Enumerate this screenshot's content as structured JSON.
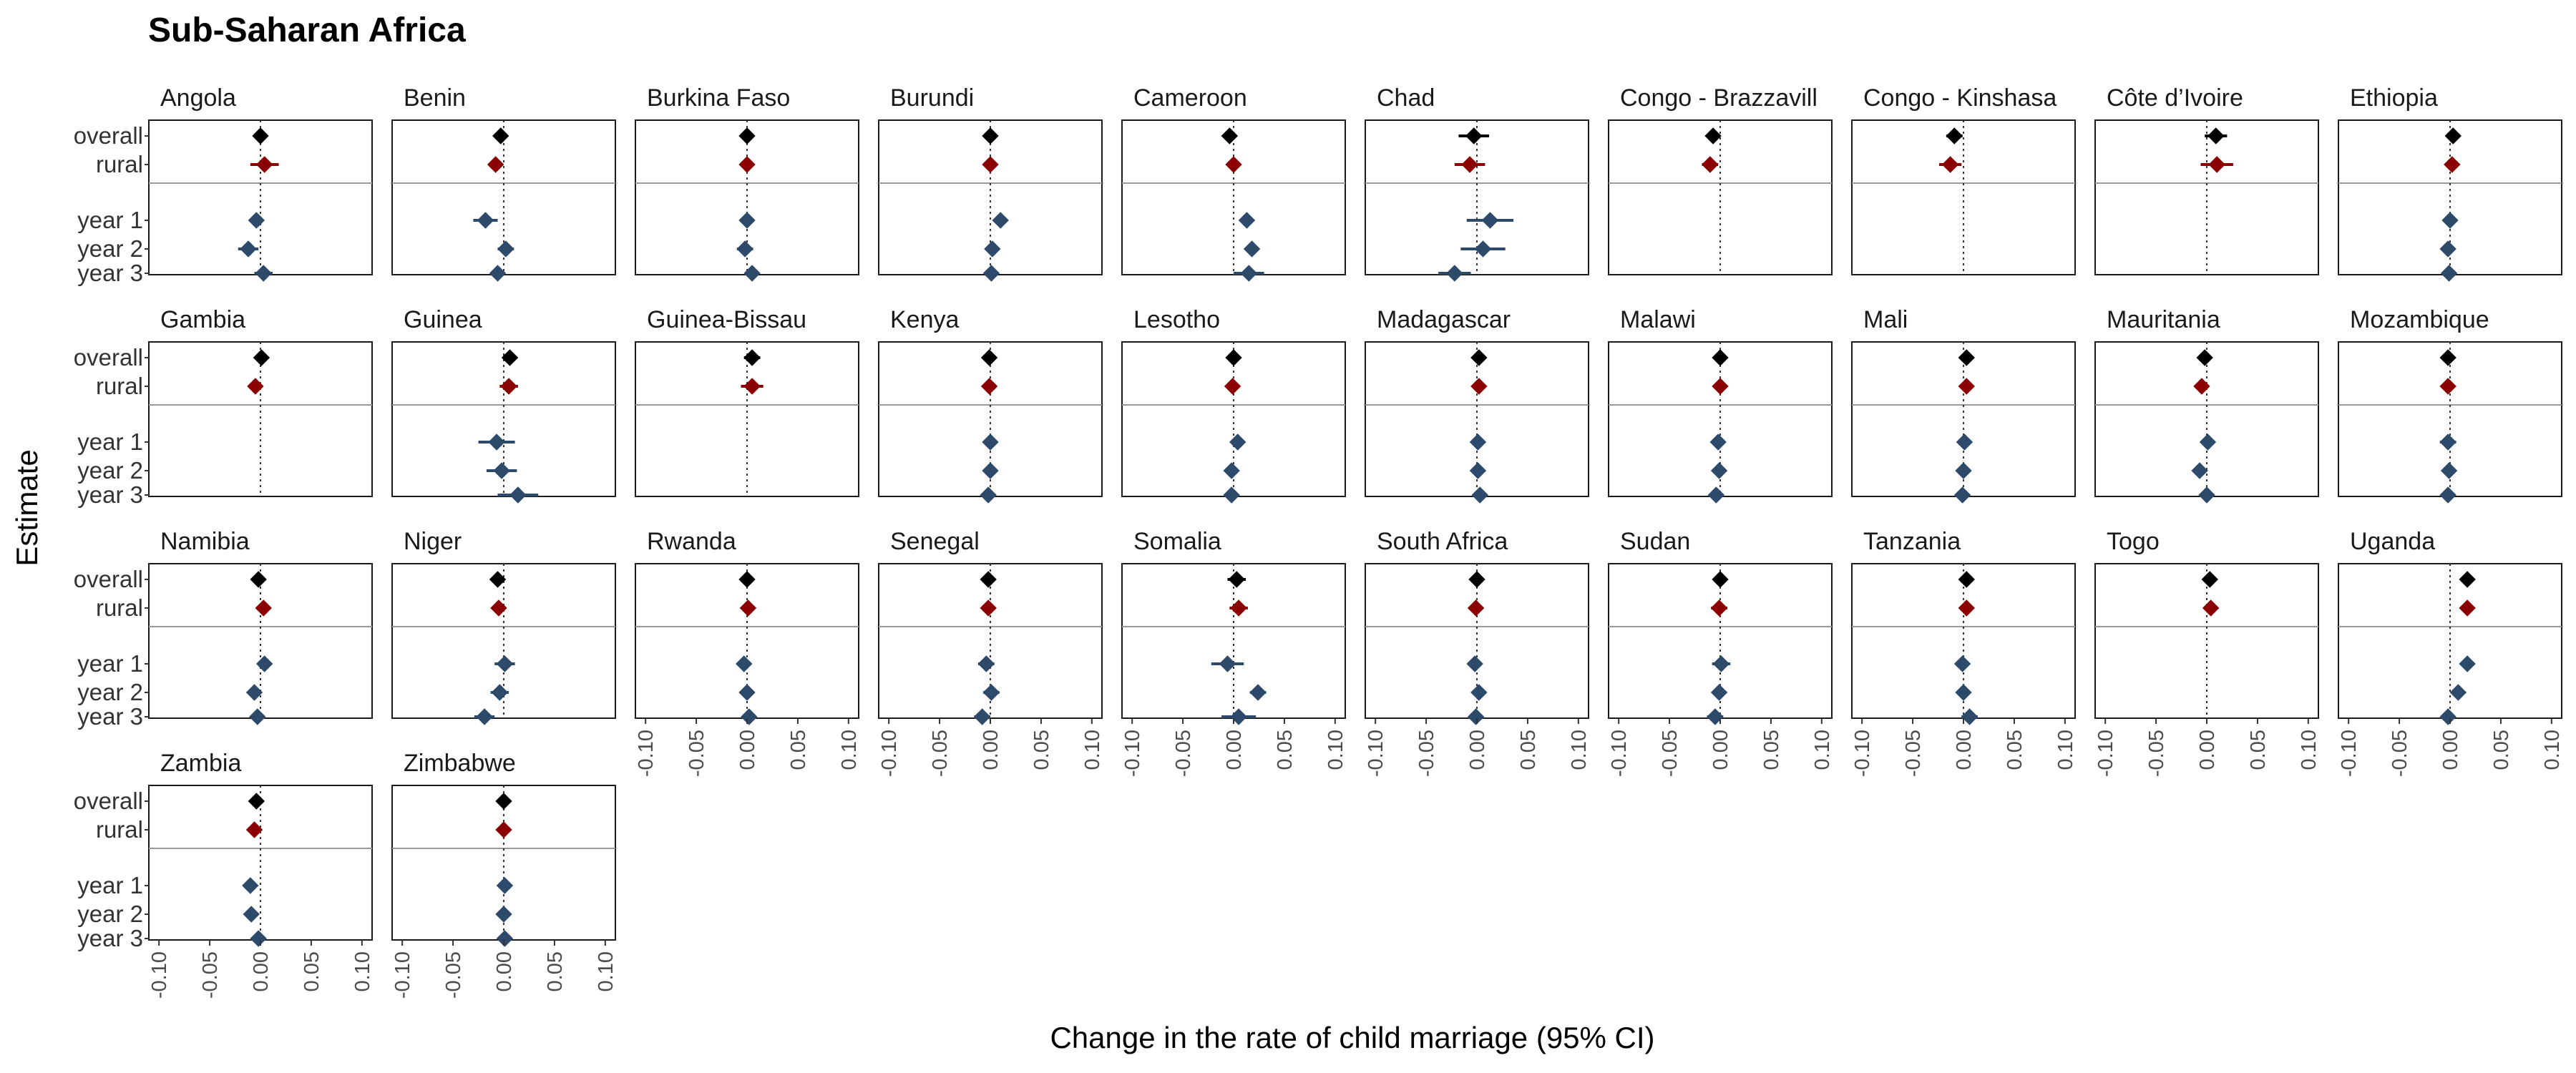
{
  "chart_data": {
    "type": "forest",
    "title": "Sub-Saharan Africa",
    "xlabel": "Change in the rate of child marriage (95% CI)",
    "ylabel": "Estimate",
    "xlim": [
      -0.11,
      0.11
    ],
    "xticks": [
      -0.1,
      -0.05,
      0.0,
      0.05,
      0.1
    ],
    "xtick_labels": [
      "-0.10",
      "-0.05",
      "0.00",
      "0.05",
      "0.10"
    ],
    "estimates": [
      "overall",
      "rural",
      "year 1",
      "year 2",
      "year 3"
    ],
    "colors": {
      "overall": "#000000",
      "rural": "#8b0000",
      "year": "#2e4a6b"
    },
    "vline": 0,
    "panels": [
      {
        "name": "Angola",
        "values": [
          [
            0.0,
            -0.004,
            0.004
          ],
          [
            0.004,
            -0.01,
            0.018
          ],
          [
            -0.004,
            -0.01,
            0.002
          ],
          [
            -0.012,
            -0.022,
            -0.002
          ],
          [
            0.003,
            -0.006,
            0.012
          ]
        ]
      },
      {
        "name": "Benin",
        "values": [
          [
            -0.003,
            -0.007,
            0.001
          ],
          [
            -0.008,
            -0.013,
            -0.003
          ],
          [
            -0.018,
            -0.03,
            -0.006
          ],
          [
            0.002,
            -0.006,
            0.01
          ],
          [
            -0.006,
            -0.013,
            0.001
          ]
        ]
      },
      {
        "name": "Burkina Faso",
        "values": [
          [
            0.0,
            -0.004,
            0.004
          ],
          [
            0.0,
            -0.005,
            0.005
          ],
          [
            0.0,
            -0.006,
            0.006
          ],
          [
            -0.002,
            -0.01,
            0.006
          ],
          [
            0.005,
            -0.002,
            0.012
          ]
        ]
      },
      {
        "name": "Burundi",
        "values": [
          [
            0.0,
            -0.004,
            0.004
          ],
          [
            0.0,
            -0.004,
            0.004
          ],
          [
            0.01,
            0.004,
            0.016
          ],
          [
            0.002,
            -0.005,
            0.009
          ],
          [
            0.001,
            -0.006,
            0.008
          ]
        ]
      },
      {
        "name": "Cameroon",
        "values": [
          [
            -0.004,
            -0.008,
            0.0
          ],
          [
            0.0,
            -0.004,
            0.004
          ],
          [
            0.013,
            0.006,
            0.02
          ],
          [
            0.018,
            0.011,
            0.025
          ],
          [
            0.015,
            0.0,
            0.03
          ]
        ]
      },
      {
        "name": "Chad",
        "values": [
          [
            -0.003,
            -0.018,
            0.012
          ],
          [
            -0.007,
            -0.022,
            0.008
          ],
          [
            0.013,
            -0.01,
            0.036
          ],
          [
            0.006,
            -0.016,
            0.028
          ],
          [
            -0.022,
            -0.038,
            -0.006
          ]
        ]
      },
      {
        "name": "Congo - Brazzavill",
        "values": [
          [
            -0.007,
            -0.012,
            -0.002
          ],
          [
            -0.01,
            -0.018,
            -0.002
          ],
          null,
          null,
          null
        ],
        "axis_domain": [
          -0.11,
          0.11
        ]
      },
      {
        "name": "Congo - Kinshasa",
        "values": [
          [
            -0.009,
            -0.017,
            -0.001
          ],
          [
            -0.013,
            -0.024,
            -0.002
          ],
          null,
          null,
          null
        ]
      },
      {
        "name": "Côte d’Ivoire",
        "values": [
          [
            0.009,
            -0.002,
            0.02
          ],
          [
            0.01,
            -0.006,
            0.026
          ],
          null,
          null,
          null
        ]
      },
      {
        "name": "Ethiopia",
        "values": [
          [
            0.003,
            -0.002,
            0.008
          ],
          [
            0.002,
            -0.002,
            0.006
          ],
          [
            0.0,
            -0.004,
            0.004
          ],
          [
            -0.002,
            -0.008,
            0.004
          ],
          [
            -0.001,
            -0.005,
            0.003
          ]
        ]
      },
      {
        "name": "Gambia",
        "values": [
          [
            0.001,
            -0.003,
            0.005
          ],
          [
            -0.005,
            -0.009,
            -0.001
          ],
          null,
          null,
          null
        ]
      },
      {
        "name": "Guinea",
        "values": [
          [
            0.006,
            -0.001,
            0.013
          ],
          [
            0.005,
            -0.004,
            0.014
          ],
          [
            -0.007,
            -0.025,
            0.011
          ],
          [
            -0.002,
            -0.017,
            0.013
          ],
          [
            0.014,
            -0.006,
            0.034
          ]
        ]
      },
      {
        "name": "Guinea-Bissau",
        "values": [
          [
            0.005,
            -0.003,
            0.013
          ],
          [
            0.005,
            -0.006,
            0.016
          ],
          null,
          null,
          null
        ]
      },
      {
        "name": "Kenya",
        "values": [
          [
            -0.001,
            -0.005,
            0.003
          ],
          [
            -0.001,
            -0.005,
            0.003
          ],
          [
            0.0,
            -0.004,
            0.004
          ],
          [
            0.0,
            -0.004,
            0.004
          ],
          [
            -0.002,
            -0.006,
            0.002
          ]
        ]
      },
      {
        "name": "Lesotho",
        "values": [
          [
            0.0,
            -0.004,
            0.004
          ],
          [
            -0.001,
            -0.006,
            0.004
          ],
          [
            0.004,
            -0.001,
            0.009
          ],
          [
            -0.002,
            -0.007,
            0.003
          ],
          [
            -0.002,
            -0.007,
            0.003
          ]
        ]
      },
      {
        "name": "Madagascar",
        "values": [
          [
            0.002,
            -0.002,
            0.006
          ],
          [
            0.002,
            -0.002,
            0.006
          ],
          [
            0.001,
            -0.003,
            0.005
          ],
          [
            0.001,
            -0.003,
            0.005
          ],
          [
            0.003,
            -0.001,
            0.007
          ]
        ]
      },
      {
        "name": "Malawi",
        "values": [
          [
            0.0,
            -0.004,
            0.004
          ],
          [
            0.0,
            -0.004,
            0.004
          ],
          [
            -0.002,
            -0.006,
            0.002
          ],
          [
            -0.001,
            -0.005,
            0.003
          ],
          [
            -0.004,
            -0.008,
            0.0
          ]
        ]
      },
      {
        "name": "Mali",
        "values": [
          [
            0.003,
            -0.001,
            0.007
          ],
          [
            0.003,
            -0.001,
            0.007
          ],
          [
            0.001,
            -0.003,
            0.005
          ],
          [
            0.0,
            -0.004,
            0.004
          ],
          [
            -0.001,
            -0.005,
            0.003
          ]
        ]
      },
      {
        "name": "Mauritania",
        "values": [
          [
            -0.002,
            -0.006,
            0.002
          ],
          [
            -0.005,
            -0.009,
            -0.001
          ],
          [
            0.001,
            -0.004,
            0.006
          ],
          [
            -0.007,
            -0.012,
            -0.002
          ],
          [
            0.0,
            -0.004,
            0.004
          ]
        ]
      },
      {
        "name": "Mozambique",
        "values": [
          [
            -0.002,
            -0.006,
            0.002
          ],
          [
            -0.002,
            -0.006,
            0.002
          ],
          [
            -0.002,
            -0.01,
            0.006
          ],
          [
            -0.001,
            -0.007,
            0.005
          ],
          [
            -0.002,
            -0.008,
            0.004
          ]
        ]
      },
      {
        "name": "Namibia",
        "values": [
          [
            -0.002,
            -0.006,
            0.002
          ],
          [
            0.003,
            -0.003,
            0.009
          ],
          [
            0.004,
            -0.001,
            0.009
          ],
          [
            -0.006,
            -0.012,
            0.0
          ],
          [
            -0.003,
            -0.008,
            0.002
          ]
        ]
      },
      {
        "name": "Niger",
        "values": [
          [
            -0.006,
            -0.012,
            0.0
          ],
          [
            -0.005,
            -0.012,
            0.002
          ],
          [
            0.001,
            -0.009,
            0.011
          ],
          [
            -0.004,
            -0.013,
            0.005
          ],
          [
            -0.019,
            -0.029,
            -0.009
          ]
        ]
      },
      {
        "name": "Rwanda",
        "values": [
          [
            0.0,
            -0.004,
            0.004
          ],
          [
            0.001,
            -0.003,
            0.005
          ],
          [
            -0.003,
            -0.007,
            0.001
          ],
          [
            0.0,
            -0.004,
            0.004
          ],
          [
            0.002,
            -0.002,
            0.006
          ]
        ]
      },
      {
        "name": "Senegal",
        "values": [
          [
            -0.002,
            -0.006,
            0.002
          ],
          [
            -0.002,
            -0.006,
            0.002
          ],
          [
            -0.004,
            -0.012,
            0.004
          ],
          [
            0.001,
            -0.007,
            0.009
          ],
          [
            -0.008,
            -0.016,
            0.0
          ]
        ]
      },
      {
        "name": "Somalia",
        "values": [
          [
            0.003,
            -0.006,
            0.012
          ],
          [
            0.005,
            -0.004,
            0.014
          ],
          [
            -0.006,
            -0.022,
            0.01
          ],
          [
            0.024,
            0.016,
            0.032
          ],
          [
            0.005,
            -0.012,
            0.022
          ]
        ]
      },
      {
        "name": "South Africa",
        "values": [
          [
            0.0,
            -0.004,
            0.004
          ],
          [
            -0.001,
            -0.005,
            0.003
          ],
          [
            -0.002,
            -0.006,
            0.002
          ],
          [
            0.002,
            -0.002,
            0.006
          ],
          [
            -0.001,
            -0.005,
            0.003
          ]
        ]
      },
      {
        "name": "Sudan",
        "values": [
          [
            0.0,
            -0.004,
            0.004
          ],
          [
            -0.001,
            -0.009,
            0.007
          ],
          [
            0.001,
            -0.008,
            0.01
          ],
          [
            -0.001,
            -0.007,
            0.005
          ],
          [
            -0.005,
            -0.013,
            0.003
          ]
        ]
      },
      {
        "name": "Tanzania",
        "values": [
          [
            0.003,
            -0.001,
            0.007
          ],
          [
            0.003,
            -0.001,
            0.007
          ],
          [
            -0.001,
            -0.005,
            0.003
          ],
          [
            0.0,
            -0.006,
            0.006
          ],
          [
            0.006,
            -0.002,
            0.014
          ]
        ]
      },
      {
        "name": "Togo",
        "values": [
          [
            0.003,
            -0.001,
            0.007
          ],
          [
            0.004,
            -0.001,
            0.009
          ],
          null,
          null,
          null
        ]
      },
      {
        "name": "Uganda",
        "values": [
          [
            0.017,
            0.013,
            0.021
          ],
          [
            0.017,
            0.013,
            0.021
          ],
          [
            0.017,
            0.013,
            0.021
          ],
          [
            0.008,
            0.004,
            0.012
          ],
          [
            -0.002,
            -0.006,
            0.002
          ]
        ]
      },
      {
        "name": "Zambia",
        "values": [
          [
            -0.004,
            -0.008,
            0.0
          ],
          [
            -0.006,
            -0.01,
            -0.002
          ],
          [
            -0.01,
            -0.015,
            -0.005
          ],
          [
            -0.009,
            -0.014,
            -0.004
          ],
          [
            -0.002,
            -0.007,
            0.003
          ]
        ]
      },
      {
        "name": "Zimbabwe",
        "values": [
          [
            0.0,
            -0.004,
            0.004
          ],
          [
            0.0,
            -0.004,
            0.004
          ],
          [
            0.001,
            -0.003,
            0.005
          ],
          [
            0.0,
            -0.004,
            0.004
          ],
          [
            0.001,
            -0.003,
            0.005
          ]
        ]
      }
    ]
  }
}
